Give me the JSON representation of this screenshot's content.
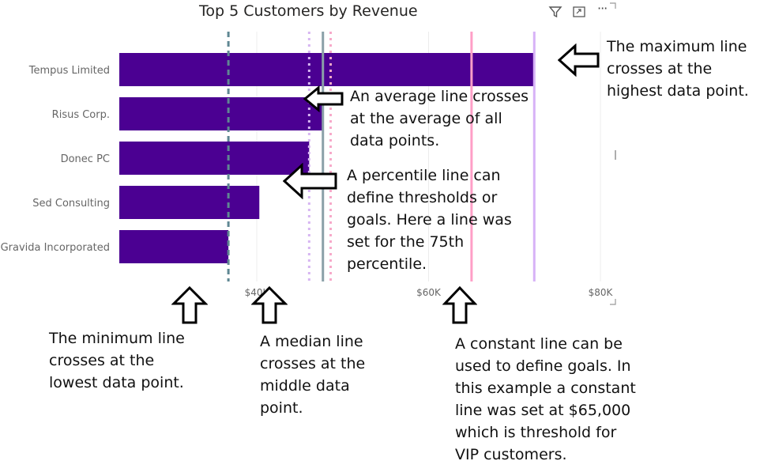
{
  "visual": {
    "title": "Top 5 Customers by Revenue",
    "toolbar": {
      "filter_icon": "filter-icon",
      "focus_icon": "focus-mode-icon",
      "more_label": "···"
    }
  },
  "chart_data": {
    "type": "bar",
    "orientation": "horizontal",
    "categories": [
      "Tempus Limited",
      "Risus Corp.",
      "Donec PC",
      "Sed Consulting",
      "Gravida Incorporated"
    ],
    "values": [
      72300,
      47700,
      46100,
      40300,
      36700
    ],
    "x_ticks": [
      {
        "value": 40000,
        "label": "$40K"
      },
      {
        "value": 60000,
        "label": "$60K"
      },
      {
        "value": 80000,
        "label": "$80K"
      }
    ],
    "xlim": [
      24000,
      80000
    ],
    "bar_color": "#4b0092",
    "reference_lines": [
      {
        "kind": "minimun",
        "value": 36700,
        "color": "#5f8793",
        "style": "dashed"
      },
      {
        "kind": "median",
        "value": 46100,
        "color": "#d7b6f2",
        "style": "dotted"
      },
      {
        "kind": "percentile-75",
        "value": 47700,
        "color": "#8aa0a8",
        "style": "solid"
      },
      {
        "kind": "average",
        "value": 48600,
        "color": "#f7a9c9",
        "style": "dotted"
      },
      {
        "kind": "constant",
        "value": 65000,
        "color": "#ff9fc7",
        "style": "solid"
      },
      {
        "kind": "maximum",
        "value": 72300,
        "color": "#d7b2f7",
        "style": "solid"
      }
    ]
  },
  "annotations": [
    {
      "id": "maximum",
      "text": "The maximum line\ncrosses at the\nhighest data point."
    },
    {
      "id": "average",
      "text": "An average line crosses\nat the average of all\ndata points."
    },
    {
      "id": "percentile",
      "text": "A percentile line can\ndefine thresholds or\ngoals. Here a line was\nset for the 75th\npercentile."
    },
    {
      "id": "minimum",
      "text": "The minimum line\ncrosses at the\nlowest data point."
    },
    {
      "id": "median",
      "text": "A median line\ncrosses at the\nmiddle data\npoint."
    },
    {
      "id": "constant",
      "text": "A constant line can be\nused to define goals. In\nthis example a constant\nline was set at $65,000\nwhich is threshold for\nVIP customers."
    }
  ]
}
